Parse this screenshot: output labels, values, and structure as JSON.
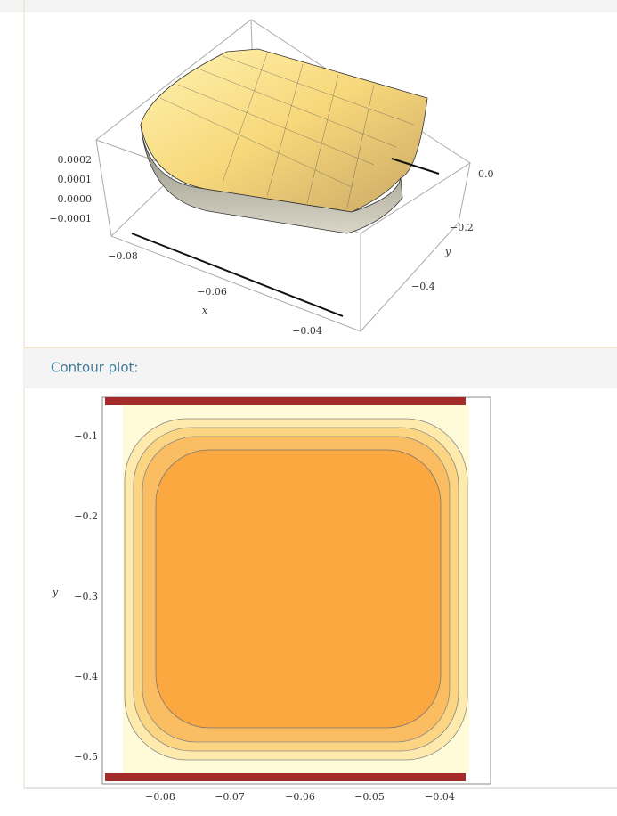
{
  "surface_plot": {
    "z_ticks": [
      "0.0002",
      "0.0001",
      "0.0000",
      "−0.0001"
    ],
    "x_ticks": [
      "−0.08",
      "−0.06",
      "−0.04"
    ],
    "x_label": "x",
    "y_ticks": [
      "0.0",
      "−0.2",
      "−0.4"
    ],
    "y_label": "y"
  },
  "contour_pod": {
    "title": "Contour plot:"
  },
  "contour_plot": {
    "x_ticks": [
      "−0.08",
      "−0.07",
      "−0.06",
      "−0.05",
      "−0.04"
    ],
    "y_ticks": [
      "−0.1",
      "−0.2",
      "−0.3",
      "−0.4",
      "−0.5"
    ],
    "y_label": "y"
  }
}
